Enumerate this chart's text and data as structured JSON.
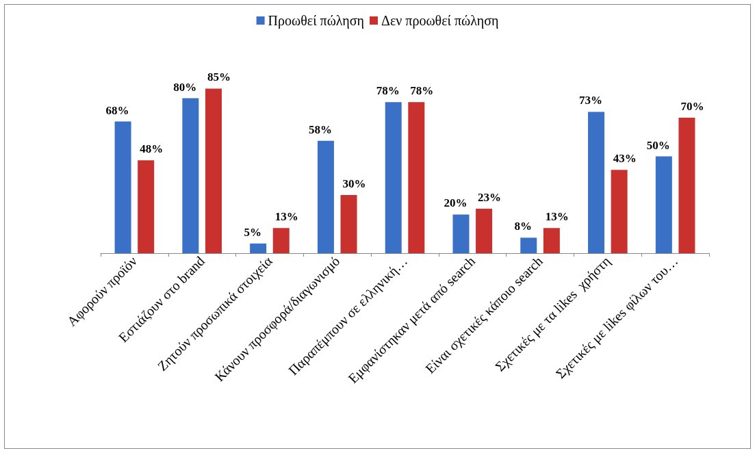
{
  "chart_data": {
    "type": "bar",
    "categories": [
      "Αφορούν προϊόν",
      "Εστιάζουν στο brand",
      "Ζητούν προσωπικά στοιχεία",
      "Κάνουν προσφορά/διαγωνισμό",
      "Παραπέμπουν σε ελληνική…",
      "Εμφανίστηκαν μετά από search",
      "Είναι σχετικές κάποιο search",
      "Σχετικές με τα likes  χρήστη",
      "Σχετικές με likes φίλων του…"
    ],
    "series": [
      {
        "name": "Προωθεί πώληση",
        "color": "#3a70c6",
        "values": [
          68,
          80,
          5,
          58,
          78,
          20,
          8,
          73,
          50
        ],
        "value_labels": [
          "68%",
          "80%",
          "5%",
          "58%",
          "78%",
          "20%",
          "8%",
          "73%",
          "50%"
        ]
      },
      {
        "name": "Δεν προωθεί πώληση",
        "color": "#c8312e",
        "values": [
          48,
          85,
          13,
          30,
          78,
          23,
          13,
          43,
          70
        ],
        "value_labels": [
          "48%",
          "85%",
          "13%",
          "30%",
          "78%",
          "23%",
          "13%",
          "43%",
          "70%"
        ]
      }
    ],
    "legend": "top"
  }
}
